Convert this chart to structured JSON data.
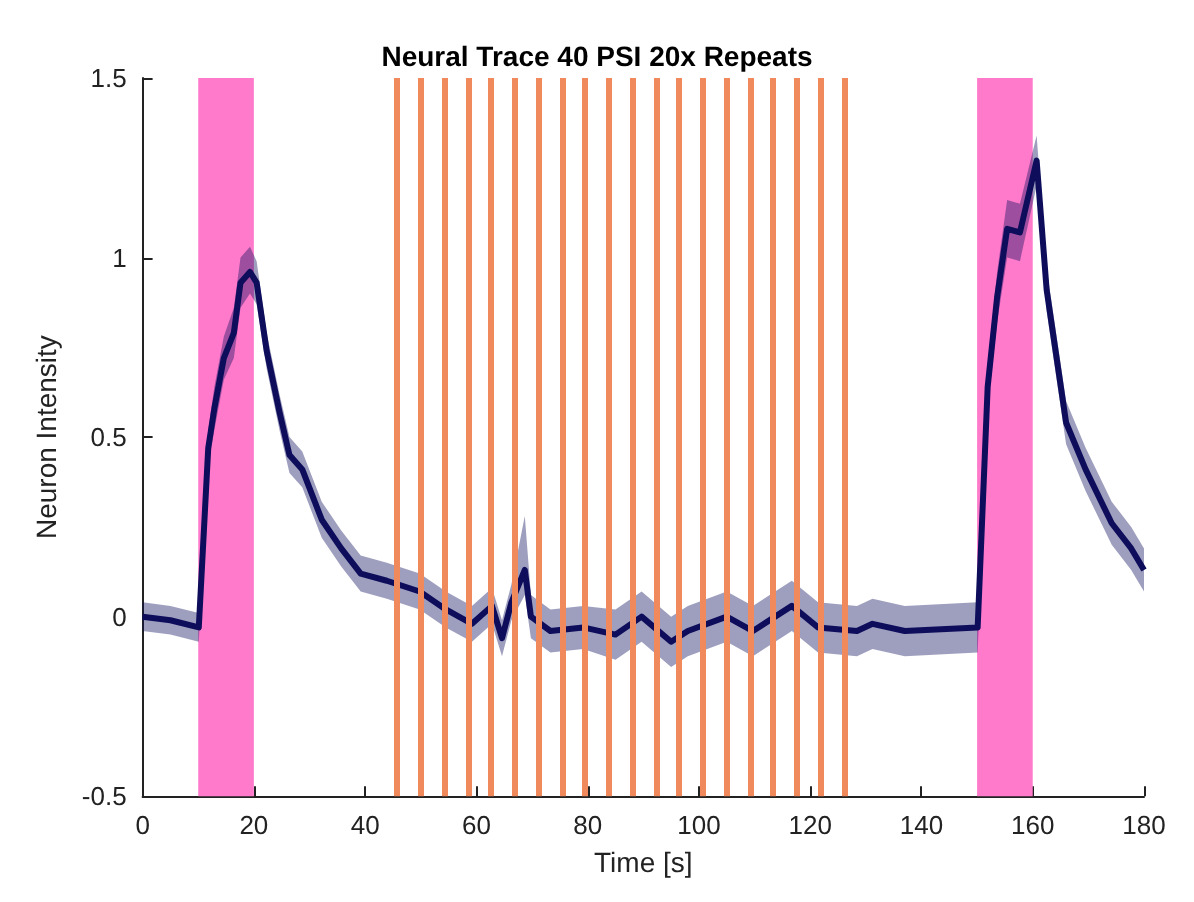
{
  "chart_data": {
    "type": "line",
    "title": "Neural Trace 40 PSI 20x Repeats",
    "xlabel": "Time [s]",
    "ylabel": "Neuron Intensity",
    "xlim": [
      0,
      180
    ],
    "ylim": [
      -0.5,
      1.5
    ],
    "xticks": [
      0,
      20,
      40,
      60,
      80,
      100,
      120,
      140,
      160,
      180
    ],
    "yticks": [
      -0.5,
      0,
      0.5,
      1,
      1.5
    ],
    "grid": false,
    "marker": "none",
    "line_style": "solid",
    "series": [
      {
        "color": "#0d0d5c",
        "x": [
          0,
          5,
          10.1,
          11.8,
          12.9,
          14.6,
          16.4,
          17.6,
          19.3,
          20.5,
          22.3,
          24.6,
          26.4,
          28.7,
          32.2,
          35.7,
          39.2,
          43.9,
          49.8,
          54.5,
          59.2,
          62.8,
          64.6,
          66.3,
          68.7,
          69.8,
          73.3,
          79.2,
          85,
          89.7,
          95,
          98,
          105,
          109.7,
          116.7,
          121.4,
          128.4,
          131.2,
          137,
          150.1,
          151.9,
          153.6,
          155.4,
          157.7,
          160.7,
          162.5,
          166,
          169.5,
          174.2,
          177.7,
          180
        ],
        "values": [
          0,
          -0.01,
          -0.03,
          0.47,
          0.58,
          0.72,
          0.79,
          0.93,
          0.96,
          0.93,
          0.74,
          0.57,
          0.45,
          0.41,
          0.27,
          0.19,
          0.12,
          0.1,
          0.07,
          0.02,
          -0.02,
          0.03,
          -0.06,
          0.04,
          0.13,
          0,
          -0.04,
          -0.03,
          -0.05,
          0,
          -0.07,
          -0.04,
          0,
          -0.04,
          0.03,
          -0.03,
          -0.04,
          -0.02,
          -0.04,
          -0.03,
          0.64,
          0.89,
          1.08,
          1.07,
          1.27,
          0.91,
          0.54,
          0.41,
          0.26,
          0.19,
          0.13
        ],
        "lower": [
          -0.04,
          -0.05,
          -0.07,
          0.42,
          0.52,
          0.66,
          0.72,
          0.86,
          0.9,
          0.87,
          0.69,
          0.52,
          0.4,
          0.36,
          0.22,
          0.14,
          0.07,
          0.05,
          0.02,
          -0.03,
          -0.07,
          -0.02,
          -0.11,
          -0.01,
          0.06,
          -0.06,
          -0.1,
          -0.09,
          -0.12,
          -0.07,
          -0.14,
          -0.11,
          -0.07,
          -0.11,
          -0.04,
          -0.1,
          -0.11,
          -0.09,
          -0.11,
          -0.1,
          0.58,
          0.82,
          1,
          0.99,
          1.2,
          0.85,
          0.48,
          0.35,
          0.2,
          0.13,
          0.07
        ],
        "upper": [
          0.04,
          0.03,
          0.01,
          0.52,
          0.64,
          0.78,
          0.86,
          1,
          1.03,
          0.99,
          0.79,
          0.62,
          0.5,
          0.46,
          0.32,
          0.24,
          0.17,
          0.15,
          0.12,
          0.07,
          0.03,
          0.08,
          -0.01,
          0.09,
          0.28,
          0.06,
          0.02,
          0.03,
          0.02,
          0.07,
          0,
          0.03,
          0.07,
          0.03,
          0.1,
          0.04,
          0.03,
          0.05,
          0.03,
          0.04,
          0.7,
          0.96,
          1.16,
          1.15,
          1.34,
          0.97,
          0.6,
          0.47,
          0.32,
          0.25,
          0.19
        ]
      }
    ],
    "bands": [
      {
        "axis": "x",
        "from": 10,
        "to": 20,
        "color": "#ff7acb"
      },
      {
        "axis": "x",
        "from": 150,
        "to": 160,
        "color": "#ff7acb"
      }
    ],
    "ref_lines": [
      {
        "axis": "x",
        "value": 45.8,
        "color": "#f08a5c"
      },
      {
        "axis": "x",
        "value": 50,
        "color": "#f08a5c"
      },
      {
        "axis": "x",
        "value": 54.2,
        "color": "#f08a5c"
      },
      {
        "axis": "x",
        "value": 58.5,
        "color": "#f08a5c"
      },
      {
        "axis": "x",
        "value": 62.7,
        "color": "#f08a5c"
      },
      {
        "axis": "x",
        "value": 66.9,
        "color": "#f08a5c"
      },
      {
        "axis": "x",
        "value": 71.1,
        "color": "#f08a5c"
      },
      {
        "axis": "x",
        "value": 75.3,
        "color": "#f08a5c"
      },
      {
        "axis": "x",
        "value": 79.6,
        "color": "#f08a5c"
      },
      {
        "axis": "x",
        "value": 83.8,
        "color": "#f08a5c"
      },
      {
        "axis": "x",
        "value": 88,
        "color": "#f08a5c"
      },
      {
        "axis": "x",
        "value": 92.2,
        "color": "#f08a5c"
      },
      {
        "axis": "x",
        "value": 96.4,
        "color": "#f08a5c"
      },
      {
        "axis": "x",
        "value": 100.7,
        "color": "#f08a5c"
      },
      {
        "axis": "x",
        "value": 104.9,
        "color": "#f08a5c"
      },
      {
        "axis": "x",
        "value": 109.1,
        "color": "#f08a5c"
      },
      {
        "axis": "x",
        "value": 113.3,
        "color": "#f08a5c"
      },
      {
        "axis": "x",
        "value": 117.5,
        "color": "#f08a5c"
      },
      {
        "axis": "x",
        "value": 121.8,
        "color": "#f08a5c"
      },
      {
        "axis": "x",
        "value": 126,
        "color": "#f08a5c"
      }
    ]
  }
}
